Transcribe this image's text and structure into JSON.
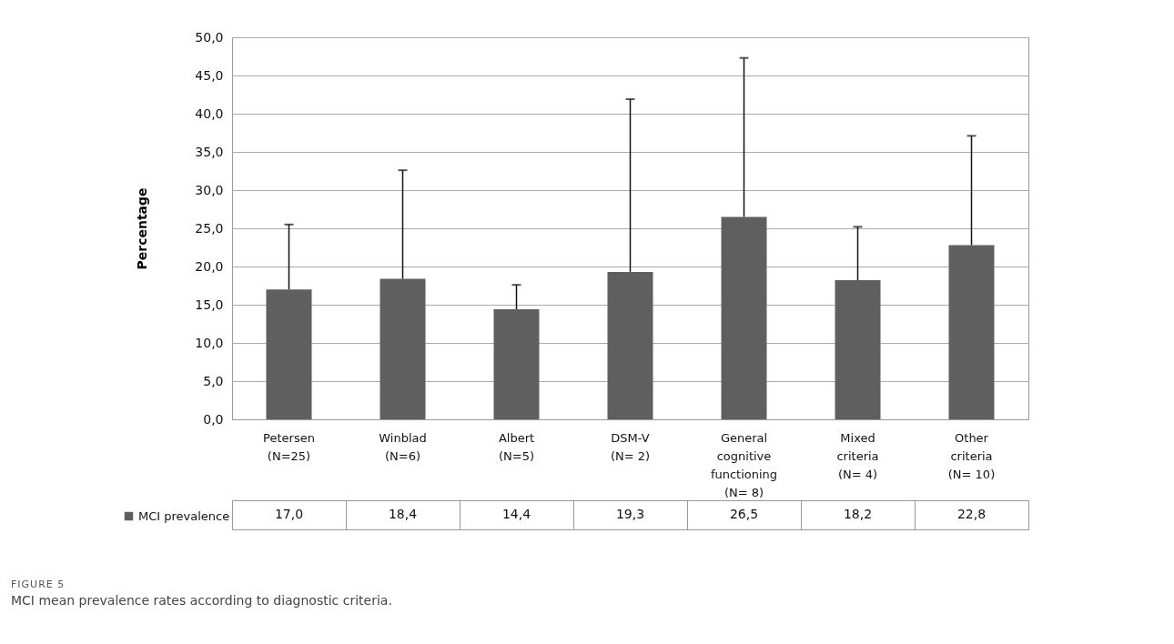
{
  "chart_data": {
    "type": "bar",
    "ylabel": "Percentage",
    "categories": [
      "Petersen\n\n(N=25)",
      "Winblad\n\n(N=6)",
      "Albert\n\n(N=5)",
      "DSM-V\n\n(N= 2)",
      "General\ncognitive\nfunctioning\n(N= 8)",
      "Mixed\ncriteria\n\n(N= 4)",
      "Other\ncriteria\n\n(N= 10)"
    ],
    "series": [
      {
        "name": "MCI prevalence",
        "color": "#5f5f5f",
        "values": [
          17.0,
          18.4,
          14.4,
          19.3,
          26.5,
          18.2,
          22.8
        ],
        "errors": [
          [
            17.0,
            25.5
          ],
          [
            18.4,
            32.6
          ],
          [
            14.4,
            17.6
          ],
          [
            19.3,
            41.9
          ],
          [
            26.5,
            47.3
          ],
          [
            18.2,
            25.2
          ],
          [
            22.8,
            37.1
          ]
        ]
      }
    ],
    "value_labels": [
      "17,0",
      "18,4",
      "14,4",
      "19,3",
      "26,5",
      "18,2",
      "22,8"
    ],
    "ylim": [
      0,
      50
    ],
    "yticks": [
      {
        "value": 0,
        "label": "0,0"
      },
      {
        "value": 5,
        "label": "5,0"
      },
      {
        "value": 10,
        "label": "10,0"
      },
      {
        "value": 15,
        "label": "15,0"
      },
      {
        "value": 20,
        "label": "20,0"
      },
      {
        "value": 25,
        "label": "25,0"
      },
      {
        "value": 30,
        "label": "30,0"
      },
      {
        "value": 35,
        "label": "35,0"
      },
      {
        "value": 40,
        "label": "40,0"
      },
      {
        "value": 45,
        "label": "45,0"
      },
      {
        "value": 50,
        "label": "50,0"
      }
    ],
    "grid": "y",
    "legend": "bottom left",
    "annotations": [
      "FIGURE 5",
      "MCI mean prevalence rates according to diagnostic criteria."
    ]
  }
}
